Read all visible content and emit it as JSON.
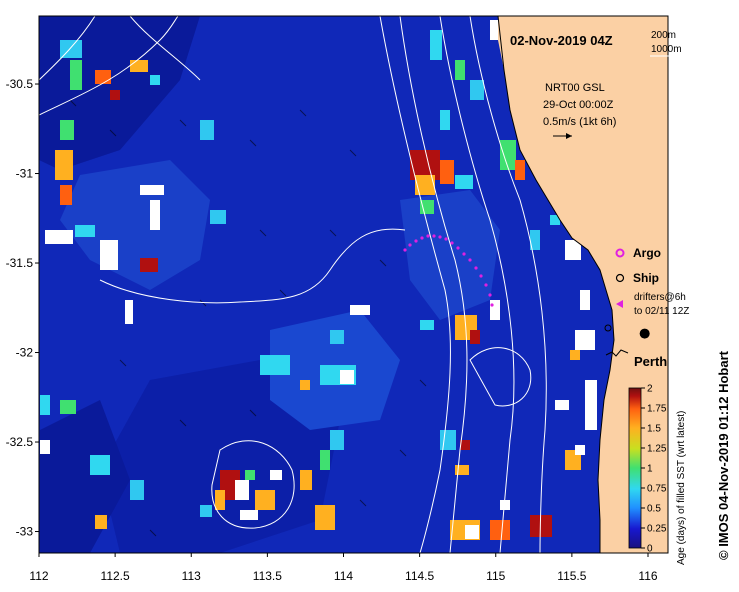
{
  "title": "02-Nov-2019 04Z",
  "scale": {
    "shelf_label": "200m",
    "deep_label": "1000m"
  },
  "currents": {
    "product": "NRT00 GSL",
    "date": "29-Oct 00:00Z",
    "vector_label": "0.5m/s (1kt 6h)"
  },
  "legend": {
    "argo": "Argo",
    "ship": "Ship",
    "drifters_line1": "drifters@6h",
    "drifters_line2": "to 02/11 12Z",
    "argo_color": "#e020e0",
    "ship_color": "#000000",
    "drifter_color": "#e020e0"
  },
  "city": {
    "name": "Perth",
    "lon": 115.86,
    "lat": -31.95
  },
  "colorbar": {
    "label": "Age (days) of filled SST (wrt latest)",
    "min": 0,
    "max": 2,
    "ticks": [
      "0",
      "0.25",
      "0.5",
      "0.75",
      "1",
      "1.25",
      "1.5",
      "1.75",
      "2"
    ],
    "colors": [
      "#1a1080",
      "#1818d0",
      "#2090ff",
      "#30d8f0",
      "#40e070",
      "#c8e020",
      "#ffb020",
      "#ff6010",
      "#b01010",
      "#701010"
    ]
  },
  "axes": {
    "x_ticks": [
      "112",
      "112.5",
      "113",
      "113.5",
      "114",
      "114.5",
      "115",
      "115.5",
      "116"
    ],
    "y_ticks": [
      "-30.5",
      "-31",
      "-31.5",
      "-32",
      "-32.5",
      "-33"
    ],
    "lon_range": [
      112,
      116
    ],
    "lat_range": [
      -33.12,
      -30.12
    ]
  },
  "credit": "© IMOS 04-Nov-2019 01:12 Hobart",
  "colors": {
    "ocean": "#1028b8",
    "land": "#fbd0a4",
    "contour": "#ffffff"
  }
}
